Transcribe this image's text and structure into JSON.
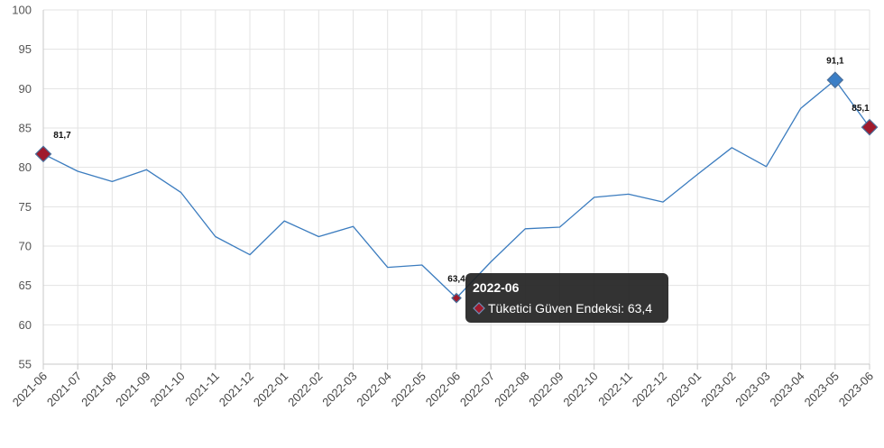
{
  "chart_data": {
    "type": "line",
    "categories": [
      "2021-06",
      "2021-07",
      "2021-08",
      "2021-09",
      "2021-10",
      "2021-11",
      "2021-12",
      "2022-01",
      "2022-02",
      "2022-03",
      "2022-04",
      "2022-05",
      "2022-06",
      "2022-07",
      "2022-08",
      "2022-09",
      "2022-10",
      "2022-11",
      "2022-12",
      "2023-01",
      "2023-02",
      "2023-03",
      "2023-04",
      "2023-05",
      "2023-06"
    ],
    "series": [
      {
        "name": "Tüketici Güven Endeksi",
        "values": [
          81.7,
          79.5,
          78.2,
          79.7,
          76.8,
          71.2,
          68.9,
          73.2,
          71.2,
          72.5,
          67.3,
          67.6,
          63.4,
          68.0,
          72.2,
          72.4,
          76.2,
          76.6,
          75.6,
          79.1,
          82.5,
          80.1,
          87.5,
          91.1,
          85.1
        ],
        "color": "#3b7cbf"
      }
    ],
    "ylim": [
      55,
      100
    ],
    "yticks": [
      55,
      60,
      65,
      70,
      75,
      80,
      85,
      90,
      95,
      100
    ],
    "grid": true,
    "legend": "none",
    "markers": [
      {
        "category": "2021-06",
        "color": "#a01a2c"
      },
      {
        "category": "2022-06",
        "color": "#a01a2c"
      },
      {
        "category": "2023-05",
        "color": "#3a7ec6"
      },
      {
        "category": "2023-06",
        "color": "#a01a2c"
      }
    ],
    "data_labels": [
      {
        "category": "2021-06",
        "text": "81,7"
      },
      {
        "category": "2022-06",
        "text": "63,4"
      },
      {
        "category": "2023-05",
        "text": "91,1"
      },
      {
        "category": "2023-06",
        "text": "85,1"
      }
    ]
  },
  "tooltip": {
    "title": "2022-06",
    "text": "Tüketici Güven Endeksi: 63,4",
    "marker_color": "#a01a2c"
  },
  "colors": {
    "grid": "#e3e3e3",
    "axis": "#c8c8c8",
    "marker_stroke": "#4a6f9a"
  }
}
